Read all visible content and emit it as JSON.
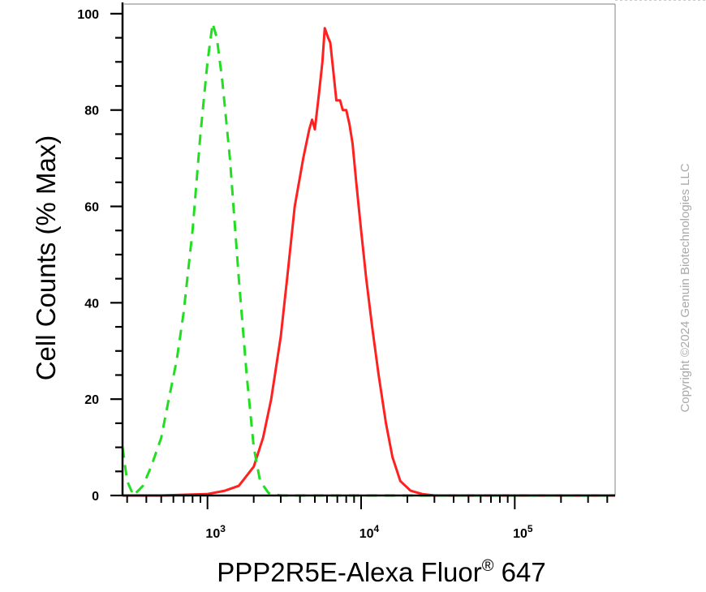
{
  "chart_data": {
    "type": "line",
    "xlabel": "PPP2R5E-Alexa Fluor",
    "xlabel_superscript": "®",
    "xlabel_suffix": " 647",
    "ylabel": "Cell Counts (% Max)",
    "x_scale": "log",
    "xlim": [
      280,
      450000
    ],
    "ylim": [
      0,
      102
    ],
    "yticks": [
      0,
      20,
      40,
      60,
      80,
      100
    ],
    "xticks": [
      {
        "value": 1000,
        "base": "10",
        "exp": "3"
      },
      {
        "value": 10000,
        "base": "10",
        "exp": "4"
      },
      {
        "value": 100000,
        "base": "10",
        "exp": "5"
      }
    ],
    "grid": false,
    "series": [
      {
        "color": "#ff2020",
        "style": "solid",
        "x": [
          280,
          500,
          800,
          1000,
          1300,
          1600,
          2000,
          2300,
          2600,
          3000,
          3300,
          3700,
          4200,
          4600,
          4800,
          5000,
          5300,
          5600,
          5800,
          6100,
          6300,
          6600,
          6900,
          7300,
          7600,
          8000,
          8400,
          8800,
          9300,
          10000,
          10800,
          11800,
          13000,
          14500,
          16000,
          18000,
          21000,
          25000,
          30000,
          40000,
          60000,
          100000,
          200000,
          450000
        ],
        "y": [
          0,
          0,
          0.2,
          0.3,
          1,
          2,
          6,
          12,
          20,
          33,
          45,
          60,
          70,
          76,
          78,
          76,
          83,
          90,
          97,
          95,
          94,
          88,
          82,
          82,
          80,
          80,
          77,
          73,
          65,
          55,
          45,
          35,
          25,
          15,
          8,
          3,
          1,
          0.3,
          0,
          0,
          0,
          0,
          0,
          0
        ]
      },
      {
        "color": "#22dd22",
        "style": "dashed",
        "x": [
          280,
          300,
          330,
          380,
          430,
          500,
          560,
          630,
          700,
          800,
          900,
          1000,
          1080,
          1150,
          1250,
          1400,
          1600,
          1800,
          2000,
          2200,
          2500,
          3000,
          5000,
          10000,
          50000,
          450000
        ],
        "y": [
          10,
          3,
          0,
          2,
          6,
          12,
          20,
          28,
          38,
          55,
          75,
          90,
          98,
          95,
          86,
          70,
          45,
          25,
          10,
          3,
          0.5,
          0,
          0,
          0,
          0,
          0
        ]
      }
    ]
  },
  "watermark": "Copyright ©2024 Genuin Biotechnologies LLC"
}
